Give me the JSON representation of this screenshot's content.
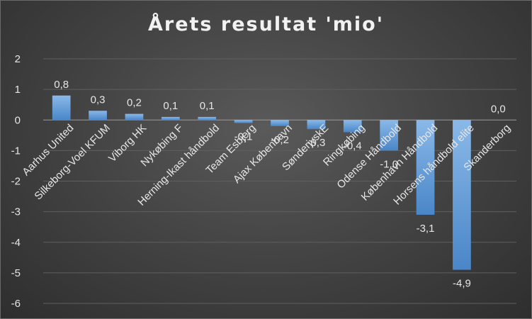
{
  "chart_data": {
    "type": "bar",
    "title": "Årets resultat 'mio'",
    "xlabel": "",
    "ylabel": "",
    "categories": [
      "Aarhus United",
      "Silkeborg-Voel KFUM",
      "Viborg HK",
      "Nykøbing F",
      "Herning-Ikast håndbold",
      "Team Esbjerg",
      "Ajax København",
      "SønderjyskE",
      "Ringkøbing",
      "Odense Håndbold",
      "København Håndbold",
      "Horsens håndbold elite",
      "Skanderborg"
    ],
    "values": [
      0.8,
      0.3,
      0.2,
      0.1,
      0.1,
      -0.1,
      -0.2,
      -0.3,
      -0.4,
      -1.0,
      -3.1,
      -4.9,
      0.0
    ],
    "value_labels": [
      "0,8",
      "0,3",
      "0,2",
      "0,1",
      "0,1",
      "-0,1",
      "-0,2",
      "-0,3",
      "-0,4",
      "-1,0",
      "-3,1",
      "-4,9",
      "0,0"
    ],
    "ylim": [
      -6,
      2
    ],
    "yticks": [
      2,
      1,
      0,
      -1,
      -2,
      -3,
      -4,
      -5,
      -6
    ],
    "ytick_labels": [
      "2",
      "1",
      "0",
      "-1",
      "-2",
      "-3",
      "-4",
      "-5",
      "-6"
    ],
    "grid": true,
    "legend": "none",
    "colors": {
      "bar_top": "#8ab9e8",
      "bar_bottom": "#4a86c8",
      "text": "#e6e6e6",
      "gridline": "#5f5f5f",
      "zero_line": "#9a9a9a"
    }
  }
}
